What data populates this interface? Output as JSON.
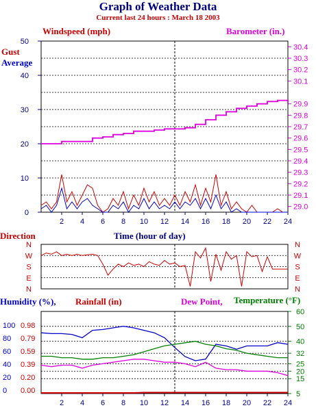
{
  "title": "Graph of Weather Data",
  "subtitle": "Current last 24 hours : March 18 2003",
  "colors": {
    "gust": "#cc0000",
    "average": "#0000cc",
    "barometer": "#dd00dd",
    "direction": "#cc0000",
    "humidity": "#0000cc",
    "rainfall": "#cc0000",
    "dew_point": "#dd00dd",
    "temperature": "#008000",
    "axis_text": "#000080",
    "current_marker": "#000000"
  },
  "labels": {
    "windspeed": "Windspeed (mph)",
    "barometer": "Barometer (in.)",
    "gust": "Gust",
    "average": "Average",
    "direction": "Direction",
    "time_axis": "Time (hour of day)",
    "humidity": "Humidity (%),",
    "rainfall": "Rainfall (in)",
    "dew_point": "Dew Point,",
    "temperature": "Temperature (°F)"
  },
  "chart_data": [
    {
      "type": "line",
      "name": "wind-barometer",
      "x_ticks": [
        2,
        4,
        6,
        8,
        10,
        12,
        14,
        16,
        18,
        20,
        22,
        24
      ],
      "xlim": [
        0,
        24
      ],
      "current_hour": 13,
      "ylim": [
        0,
        50
      ],
      "y_ticks": [
        0,
        10,
        20,
        30,
        40,
        50
      ],
      "ylim_right": [
        28.95,
        30.45
      ],
      "y_ticks_right": [
        "29.0",
        "29.1",
        "29.2",
        "29.3",
        "29.4",
        "29.5",
        "29.6",
        "29.7",
        "29.8",
        "29.9",
        "30.1",
        "30.2",
        "30.3",
        "30.4"
      ],
      "series": [
        {
          "name": "Gust",
          "axis": "left",
          "x": [
            0,
            0.5,
            1,
            1.5,
            2,
            2.5,
            3,
            3.5,
            4,
            4.5,
            5,
            5.5,
            6,
            6.5,
            7,
            7.5,
            8,
            8.5,
            9,
            9.5,
            10,
            10.5,
            11,
            11.5,
            12,
            12.5,
            13,
            13.5,
            14,
            14.5,
            15,
            15.5,
            16,
            16.5,
            17,
            17.5,
            18,
            18.5,
            19,
            19.5,
            20,
            20.5,
            21,
            21.5,
            22,
            22.5,
            23,
            23.5,
            24
          ],
          "values": [
            2,
            3,
            1,
            3,
            11,
            3,
            6,
            2,
            5,
            8,
            7,
            2,
            0,
            1,
            4,
            2,
            6,
            1,
            5,
            2,
            7,
            3,
            6,
            2,
            4,
            2,
            5,
            2,
            6,
            3,
            8,
            2,
            7,
            3,
            11,
            2,
            6,
            1,
            3,
            1,
            0,
            2,
            0,
            0,
            0,
            0,
            1,
            0,
            0
          ]
        },
        {
          "name": "Average",
          "axis": "left",
          "x": [
            0,
            0.5,
            1,
            1.5,
            2,
            2.5,
            3,
            3.5,
            4,
            4.5,
            5,
            5.5,
            6,
            6.5,
            7,
            7.5,
            8,
            8.5,
            9,
            9.5,
            10,
            10.5,
            11,
            11.5,
            12,
            12.5,
            13,
            13.5,
            14,
            14.5,
            15,
            15.5,
            16,
            16.5,
            17,
            17.5,
            18,
            18.5,
            19,
            19.5,
            20,
            20.5,
            21,
            21.5,
            22,
            22.5,
            23,
            23.5,
            24
          ],
          "values": [
            1,
            2,
            0,
            2,
            7,
            1,
            3,
            1,
            3,
            4,
            2,
            1,
            0,
            0,
            2,
            1,
            3,
            0,
            2,
            1,
            4,
            1,
            3,
            1,
            2,
            1,
            3,
            1,
            3,
            2,
            4,
            1,
            4,
            1,
            5,
            1,
            3,
            0,
            1,
            0,
            0,
            0,
            0,
            0,
            0,
            0,
            0,
            0,
            0
          ]
        },
        {
          "name": "Barometer",
          "axis": "right",
          "x": [
            0,
            1,
            2,
            3,
            4,
            5,
            6,
            7,
            8,
            9,
            10,
            11,
            12,
            13,
            14,
            15,
            16,
            17,
            18,
            19,
            20,
            21,
            22,
            23,
            24
          ],
          "values": [
            29.55,
            29.55,
            29.57,
            29.57,
            29.57,
            29.6,
            29.61,
            29.63,
            29.64,
            29.66,
            29.66,
            29.67,
            29.68,
            29.68,
            29.69,
            29.72,
            29.76,
            29.8,
            29.83,
            29.86,
            29.88,
            29.9,
            29.92,
            29.93,
            29.91
          ]
        }
      ]
    },
    {
      "type": "line",
      "name": "direction",
      "xlim": [
        0,
        24
      ],
      "categories": [
        "N",
        "W",
        "S",
        "E",
        "N"
      ],
      "series": [
        {
          "name": "Direction",
          "x": [
            0,
            0.5,
            1,
            1.5,
            2,
            2.5,
            3,
            3.5,
            4,
            4.5,
            5,
            5.5,
            6,
            6.5,
            7,
            7.5,
            8,
            8.5,
            9,
            9.5,
            10,
            10.5,
            11,
            11.5,
            12,
            12.5,
            13,
            13.5,
            14,
            14.5,
            15,
            15.5,
            16,
            16.5,
            17,
            17.5,
            18,
            18.5,
            19,
            19.5,
            20,
            20.5,
            21,
            21.5,
            22,
            22.5,
            23,
            23.5,
            24
          ],
          "values": [
            270,
            290,
            280,
            300,
            270,
            280,
            270,
            280,
            270,
            275,
            280,
            270,
            200,
            110,
            160,
            200,
            180,
            210,
            190,
            200,
            180,
            220,
            200,
            190,
            230,
            200,
            210,
            180,
            190,
            20,
            300,
            250,
            330,
            60,
            280,
            150,
            300,
            240,
            270,
            20,
            300,
            260,
            270,
            140,
            260,
            160,
            160,
            160,
            160
          ]
        }
      ]
    },
    {
      "type": "line",
      "name": "humidity-temperature",
      "xlim": [
        0,
        24
      ],
      "ylim": [
        0,
        100
      ],
      "y_ticks": [
        0,
        20,
        40,
        60,
        80,
        100
      ],
      "rain_ticks": [
        "0.00",
        "0.20",
        "0.39",
        "0.59",
        "0.79",
        "0.98"
      ],
      "ylim_right": [
        5,
        60
      ],
      "y_ticks_right": [
        5,
        15,
        20,
        25,
        32,
        40,
        50,
        60
      ],
      "series": [
        {
          "name": "Humidity",
          "axis": "left",
          "x": [
            0,
            1,
            2,
            3,
            4,
            5,
            6,
            7,
            8,
            9,
            10,
            11,
            12,
            13,
            14,
            15,
            16,
            17,
            18,
            19,
            20,
            21,
            22,
            23,
            24
          ],
          "values": [
            74,
            73,
            73,
            72,
            68,
            77,
            78,
            80,
            82,
            80,
            77,
            74,
            68,
            56,
            45,
            40,
            42,
            60,
            58,
            54,
            58,
            58,
            58,
            62,
            60
          ]
        },
        {
          "name": "Rainfall",
          "axis": "rain",
          "x": [
            0,
            9,
            10,
            11,
            12,
            13,
            14,
            15,
            16,
            17,
            18,
            19,
            20,
            21,
            22,
            23,
            24
          ],
          "values": [
            0,
            0,
            0.005,
            0.005,
            0.005,
            0.005,
            0.005,
            0.005,
            0.005,
            0.005,
            0.005,
            0.005,
            0.005,
            0.005,
            0.005,
            0.005,
            0.005
          ]
        },
        {
          "name": "Dew Point",
          "axis": "right",
          "x": [
            0,
            1,
            2,
            3,
            4,
            5,
            6,
            7,
            8,
            9,
            10,
            11,
            12,
            13,
            14,
            15,
            16,
            17,
            18,
            19,
            20,
            21,
            22,
            23,
            24
          ],
          "values": [
            24,
            23,
            24,
            24,
            22,
            24,
            25,
            26,
            27,
            28,
            28,
            27,
            26,
            26,
            25,
            23,
            26,
            22,
            21,
            21,
            20,
            20,
            20,
            19,
            17
          ]
        },
        {
          "name": "Temperature",
          "axis": "right",
          "x": [
            0,
            1,
            2,
            3,
            4,
            5,
            6,
            7,
            8,
            9,
            10,
            11,
            12,
            13,
            14,
            15,
            16,
            17,
            18,
            19,
            20,
            21,
            22,
            23,
            24
          ],
          "values": [
            30,
            30,
            29,
            29,
            28,
            28,
            29,
            29,
            30,
            31,
            33,
            35,
            37,
            38,
            39,
            40,
            38,
            37,
            35,
            34,
            32,
            31,
            30,
            29,
            29
          ]
        }
      ]
    }
  ]
}
